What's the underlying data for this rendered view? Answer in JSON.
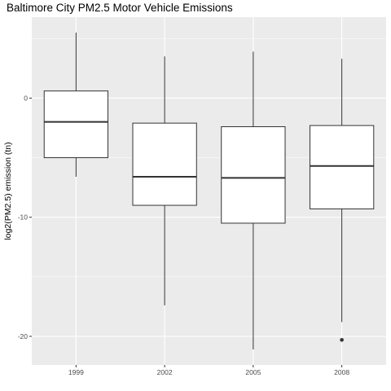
{
  "chart_data": {
    "type": "box",
    "title": "Baltimore City PM2.5 Motor Vehicle Emissions",
    "xlabel": "",
    "ylabel": "log2(PM2.5) emission (tn)",
    "categories": [
      "1999",
      "2002",
      "2005",
      "2008"
    ],
    "boxes": [
      {
        "category": "1999",
        "whisker_low": -6.6,
        "q1": -5.0,
        "median": -2.0,
        "q3": 0.6,
        "whisker_high": 5.5,
        "outliers": []
      },
      {
        "category": "2002",
        "whisker_low": -17.4,
        "q1": -9.0,
        "median": -6.6,
        "q3": -2.1,
        "whisker_high": 3.5,
        "outliers": []
      },
      {
        "category": "2005",
        "whisker_low": -21.1,
        "q1": -10.5,
        "median": -6.7,
        "q3": -2.4,
        "whisker_high": 3.9,
        "outliers": []
      },
      {
        "category": "2008",
        "whisker_low": -18.8,
        "q1": -9.3,
        "median": -5.7,
        "q3": -2.3,
        "whisker_high": 3.3,
        "outliers": [
          -20.3
        ]
      }
    ],
    "y_ticks": [
      0,
      -10,
      -20
    ],
    "y_tick_labels": [
      "0",
      "-10",
      "-20"
    ],
    "ylim": [
      -22.4,
      6.8
    ],
    "grid": true,
    "colors": {
      "panel": "#ebebeb",
      "grid_major": "#ffffff",
      "box_fill": "#ffffff",
      "box_line": "#333333",
      "tick_text": "#4d4d4d"
    }
  }
}
